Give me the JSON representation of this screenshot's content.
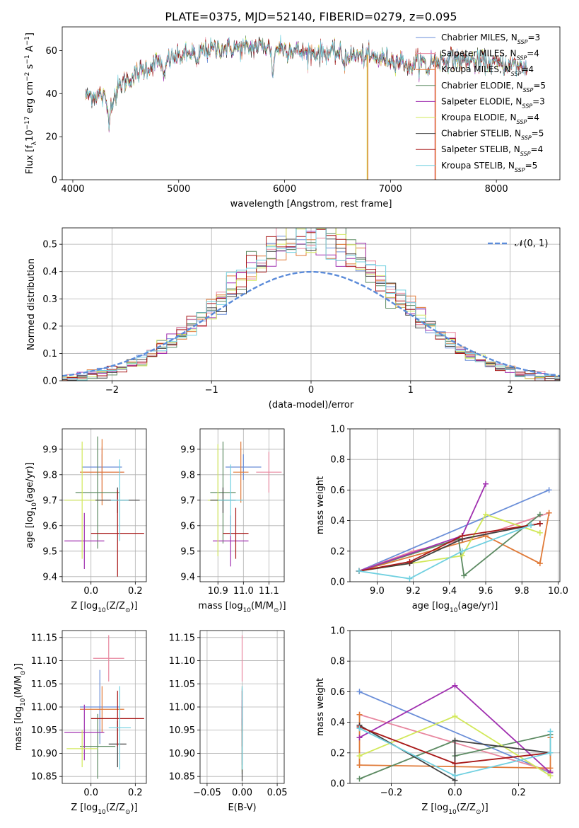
{
  "title": "PLATE=0375, MJD=52140, FIBERID=0279, z=0.095",
  "colors": {
    "Chabrier MILES": "#6a8ed8",
    "Salpeter MILES": "#e8879f",
    "Kroupa MILES": "#e07a38",
    "Chabrier ELODIE": "#5c8a62",
    "Salpeter ELODIE": "#a030b0",
    "Kroupa ELODIE": "#d2e85a",
    "Chabrier STELIB": "#404040",
    "Salpeter STELIB": "#a81818",
    "Kroupa STELIB": "#70d0e0"
  },
  "chart_data": [
    {
      "id": "spectrum",
      "type": "line",
      "xlabel": "wavelength [Angstrom, rest frame]",
      "ylabel": "Flux [f$_\\lambda$10$^{-17}$ erg cm$^{-2}$ s$^{-1}$ A$^{-1}$]",
      "xlim": [
        3900,
        8600
      ],
      "ylim": [
        0,
        71
      ],
      "xticks": [
        4000,
        5000,
        6000,
        7000,
        8000
      ],
      "yticks": [
        0,
        20,
        40,
        60
      ],
      "legend_position": "top-right",
      "legend": [
        {
          "name": "Chabrier MILES",
          "base": "Chabrier MILES, N",
          "sub": "SSP",
          "tail": "=3"
        },
        {
          "name": "Salpeter MILES",
          "base": "Salpeter MILES, N",
          "sub": "SSP",
          "tail": "=4"
        },
        {
          "name": "Kroupa MILES",
          "base": "Kroupa MILES, N",
          "sub": "SSP",
          "tail": "=4"
        },
        {
          "name": "Chabrier ELODIE",
          "base": "Chabrier ELODIE, N",
          "sub": "SSP",
          "tail": "=5"
        },
        {
          "name": "Salpeter ELODIE",
          "base": "Salpeter ELODIE, N",
          "sub": "SSP",
          "tail": "=3"
        },
        {
          "name": "Kroupa ELODIE",
          "base": "Kroupa ELODIE, N",
          "sub": "SSP",
          "tail": "=4"
        },
        {
          "name": "Chabrier STELIB",
          "base": "Chabrier STELIB, N",
          "sub": "SSP",
          "tail": "=5"
        },
        {
          "name": "Salpeter STELIB",
          "base": "Salpeter STELIB, N",
          "sub": "SSP",
          "tail": "=4"
        },
        {
          "name": "Kroupa STELIB",
          "base": "Kroupa STELIB, N",
          "sub": "SSP",
          "tail": "=5"
        }
      ],
      "continuum": [
        [
          4120,
          39
        ],
        [
          4250,
          40
        ],
        [
          4350,
          35
        ],
        [
          4450,
          44
        ],
        [
          4600,
          49
        ],
        [
          4800,
          55
        ],
        [
          5000,
          57
        ],
        [
          5200,
          60
        ],
        [
          5400,
          61
        ],
        [
          5600,
          61
        ],
        [
          5800,
          62
        ],
        [
          6000,
          61
        ],
        [
          6200,
          59
        ],
        [
          6400,
          59
        ],
        [
          6600,
          58
        ],
        [
          6800,
          57
        ],
        [
          7000,
          56
        ],
        [
          7200,
          54
        ],
        [
          7400,
          55
        ],
        [
          7600,
          56
        ],
        [
          7800,
          55
        ],
        [
          8000,
          54
        ],
        [
          8200,
          53
        ],
        [
          8300,
          52
        ]
      ],
      "dips": [
        [
          4340,
          -6
        ],
        [
          4861,
          -10
        ],
        [
          5175,
          -8
        ],
        [
          5890,
          -11
        ],
        [
          6563,
          -3
        ],
        [
          7180,
          -4
        ],
        [
          7350,
          -5
        ]
      ],
      "drops": [
        {
          "x": 6780,
          "from": 58,
          "colors": [
            "Kroupa ELODIE",
            "Kroupa MILES"
          ]
        },
        {
          "x": 7420,
          "from": 55,
          "colors": [
            "Salpeter MILES",
            "Kroupa MILES"
          ]
        }
      ]
    },
    {
      "id": "residuals",
      "type": "histogram",
      "xlabel": "(data-model)/error",
      "ylabel": "Normed distribution",
      "xlim": [
        -2.5,
        2.5
      ],
      "ylim": [
        0,
        0.56
      ],
      "xticks": [
        -2,
        -1,
        0,
        1,
        2
      ],
      "yticks": [
        0.0,
        0.1,
        0.2,
        0.3,
        0.4,
        0.5
      ],
      "bin_width": 0.1,
      "reference_curve": {
        "name": "𝒩(0, 1)",
        "type": "normal",
        "mean": 0,
        "sigma": 1
      },
      "legend_position": "top-right"
    },
    {
      "id": "z-age",
      "type": "scatter",
      "xlabel": "Z [log$_{10}$(Z/Z$_\\odot$)]",
      "ylabel": "age  [log$_{10}$(age/yr)]",
      "xlim": [
        -0.13,
        0.25
      ],
      "ylim": [
        9.38,
        9.98
      ],
      "xticks": [
        0.0,
        0.2
      ],
      "yticks": [
        9.4,
        9.5,
        9.6,
        9.7,
        9.8,
        9.9
      ],
      "points": [
        {
          "series": "Chabrier MILES",
          "x": 0.05,
          "xerr": 0.09,
          "y": 9.83,
          "yerr": 0.05
        },
        {
          "series": "Salpeter MILES",
          "x": 0.05,
          "xerr": 0.1,
          "y": 9.81,
          "yerr": 0.1
        },
        {
          "series": "Kroupa MILES",
          "x": 0.05,
          "xerr": 0.1,
          "y": 9.81,
          "yerr": 0.13
        },
        {
          "series": "Chabrier ELODIE",
          "x": 0.03,
          "xerr": 0.1,
          "y": 9.73,
          "yerr": 0.22
        },
        {
          "series": "Salpeter ELODIE",
          "x": -0.03,
          "xerr": 0.09,
          "y": 9.54,
          "yerr": 0.11
        },
        {
          "series": "Kroupa ELODIE",
          "x": -0.04,
          "xerr": 0.08,
          "y": 9.7,
          "yerr": 0.23
        },
        {
          "series": "Chabrier STELIB",
          "x": 0.12,
          "xerr": 0.1,
          "y": 9.7,
          "yerr": 0.05
        },
        {
          "series": "Salpeter STELIB",
          "x": 0.12,
          "xerr": 0.12,
          "y": 9.57,
          "yerr": 0.17
        },
        {
          "series": "Kroupa STELIB",
          "x": 0.13,
          "xerr": 0.04,
          "y": 9.7,
          "yerr": 0.16
        }
      ]
    },
    {
      "id": "mass-age",
      "type": "scatter",
      "xlabel": "mass [log$_{10}$(M/M$_\\odot$)]",
      "ylabel": "",
      "xlim": [
        10.83,
        11.16
      ],
      "ylim": [
        9.38,
        9.98
      ],
      "xticks": [
        10.9,
        11.0,
        11.1
      ],
      "yticks": [
        9.4,
        9.5,
        9.6,
        9.7,
        9.8,
        9.9
      ],
      "points": [
        {
          "series": "Chabrier MILES",
          "x": 11.0,
          "xerr": 0.07,
          "y": 9.83,
          "yerr": 0.05
        },
        {
          "series": "Salpeter MILES",
          "x": 11.1,
          "xerr": 0.05,
          "y": 9.81,
          "yerr": 0.08
        },
        {
          "series": "Kroupa MILES",
          "x": 10.99,
          "xerr": 0.03,
          "y": 9.81,
          "yerr": 0.12
        },
        {
          "series": "Chabrier ELODIE",
          "x": 10.92,
          "xerr": 0.05,
          "y": 9.73,
          "yerr": 0.2
        },
        {
          "series": "Salpeter ELODIE",
          "x": 10.95,
          "xerr": 0.07,
          "y": 9.54,
          "yerr": 0.1
        },
        {
          "series": "Kroupa ELODIE",
          "x": 10.9,
          "xerr": 0.04,
          "y": 9.7,
          "yerr": 0.22
        },
        {
          "series": "Chabrier STELIB",
          "x": 10.92,
          "xerr": 0.05,
          "y": 9.7,
          "yerr": 0.05
        },
        {
          "series": "Salpeter STELIB",
          "x": 10.97,
          "xerr": 0.05,
          "y": 9.57,
          "yerr": 0.1
        },
        {
          "series": "Kroupa STELIB",
          "x": 10.95,
          "xerr": 0.05,
          "y": 9.7,
          "yerr": 0.14
        }
      ]
    },
    {
      "id": "age-weight",
      "type": "line",
      "xlabel": "age  [log$_{10}$(age/yr)]",
      "ylabel": "mass weight",
      "xlim": [
        8.85,
        10.01
      ],
      "ylim": [
        0,
        1
      ],
      "xticks": [
        9.0,
        9.2,
        9.4,
        9.6,
        9.8,
        10.0
      ],
      "yticks": [
        0.0,
        0.2,
        0.4,
        0.6,
        0.8,
        1.0
      ],
      "series": [
        {
          "name": "Chabrier MILES",
          "x": [
            8.9,
            9.95
          ],
          "y": [
            0.07,
            0.6
          ]
        },
        {
          "name": "Salpeter MILES",
          "x": [
            8.9,
            9.2,
            9.6,
            9.95
          ],
          "y": [
            0.07,
            0.2,
            0.31,
            0.45
          ]
        },
        {
          "name": "Kroupa MILES",
          "x": [
            8.9,
            9.6,
            9.9,
            9.95
          ],
          "y": [
            0.07,
            0.3,
            0.12,
            0.45
          ]
        },
        {
          "name": "Chabrier ELODIE",
          "x": [
            8.9,
            9.45,
            9.48,
            9.9
          ],
          "y": [
            0.07,
            0.28,
            0.04,
            0.44
          ]
        },
        {
          "name": "Salpeter ELODIE",
          "x": [
            8.9,
            9.47,
            9.6
          ],
          "y": [
            0.07,
            0.3,
            0.64
          ]
        },
        {
          "name": "Kroupa ELODIE",
          "x": [
            8.9,
            9.47,
            9.6,
            9.9
          ],
          "y": [
            0.07,
            0.17,
            0.44,
            0.32
          ]
        },
        {
          "name": "Chabrier STELIB",
          "x": [
            8.9,
            9.18,
            9.47,
            9.9
          ],
          "y": [
            0.07,
            0.12,
            0.28,
            0.38
          ]
        },
        {
          "name": "Salpeter STELIB",
          "x": [
            8.9,
            9.18,
            9.47,
            9.9
          ],
          "y": [
            0.07,
            0.13,
            0.3,
            0.38
          ]
        },
        {
          "name": "Kroupa STELIB",
          "x": [
            8.9,
            9.18,
            9.47,
            9.85
          ],
          "y": [
            0.07,
            0.02,
            0.2,
            0.37
          ]
        }
      ]
    },
    {
      "id": "z-mass",
      "type": "scatter",
      "xlabel": "Z [log$_{10}$(Z/Z$_\\odot$)]",
      "ylabel": "mass [log$_{10}$(M/M$_\\odot$)]",
      "xlim": [
        -0.13,
        0.25
      ],
      "ylim": [
        10.835,
        11.165
      ],
      "xticks": [
        0.0,
        0.2
      ],
      "yticks": [
        10.85,
        10.9,
        10.95,
        11.0,
        11.05,
        11.1,
        11.15
      ],
      "points": [
        {
          "series": "Chabrier MILES",
          "x": 0.04,
          "xerr": 0.09,
          "y": 11.0,
          "yerr": 0.08
        },
        {
          "series": "Salpeter MILES",
          "x": 0.08,
          "xerr": 0.07,
          "y": 11.105,
          "yerr": 0.05
        },
        {
          "series": "Kroupa MILES",
          "x": 0.05,
          "xerr": 0.1,
          "y": 10.995,
          "yerr": 0.05
        },
        {
          "series": "Chabrier ELODIE",
          "x": 0.03,
          "xerr": 0.08,
          "y": 10.915,
          "yerr": 0.07
        },
        {
          "series": "Salpeter ELODIE",
          "x": -0.03,
          "xerr": 0.09,
          "y": 10.945,
          "yerr": 0.06
        },
        {
          "series": "Kroupa ELODIE",
          "x": -0.04,
          "xerr": 0.07,
          "y": 10.91,
          "yerr": 0.04
        },
        {
          "series": "Chabrier STELIB",
          "x": 0.12,
          "xerr": 0.04,
          "y": 10.92,
          "yerr": 0.05
        },
        {
          "series": "Salpeter STELIB",
          "x": 0.12,
          "xerr": 0.12,
          "y": 10.975,
          "yerr": 0.06
        },
        {
          "series": "Kroupa STELIB",
          "x": 0.13,
          "xerr": 0.05,
          "y": 10.955,
          "yerr": 0.09
        }
      ]
    },
    {
      "id": "ebv-mass",
      "type": "scatter",
      "xlabel": "E(B-V)",
      "ylabel": "",
      "xlim": [
        -0.06,
        0.06
      ],
      "ylim": [
        10.835,
        11.165
      ],
      "xticks": [
        -0.05,
        0.0,
        0.05
      ],
      "yticks": [
        10.85,
        10.9,
        10.95,
        11.0,
        11.05,
        11.1,
        11.15
      ],
      "points": [
        {
          "series": "Chabrier MILES",
          "x": 0,
          "xerr": 0,
          "y": 11.0,
          "yerr": 0.04
        },
        {
          "series": "Salpeter MILES",
          "x": 0,
          "xerr": 0,
          "y": 11.105,
          "yerr": 0.05
        },
        {
          "series": "Kroupa MILES",
          "x": 0,
          "xerr": 0,
          "y": 10.995,
          "yerr": 0.05
        },
        {
          "series": "Chabrier ELODIE",
          "x": 0,
          "xerr": 0,
          "y": 10.915,
          "yerr": 0.06
        },
        {
          "series": "Salpeter ELODIE",
          "x": 0,
          "xerr": 0,
          "y": 10.945,
          "yerr": 0.07
        },
        {
          "series": "Kroupa ELODIE",
          "x": 0,
          "xerr": 0,
          "y": 10.91,
          "yerr": 0.05
        },
        {
          "series": "Chabrier STELIB",
          "x": 0,
          "xerr": 0,
          "y": 10.92,
          "yerr": 0.08
        },
        {
          "series": "Salpeter STELIB",
          "x": 0,
          "xerr": 0,
          "y": 10.975,
          "yerr": 0.06
        },
        {
          "series": "Kroupa STELIB",
          "x": 0,
          "xerr": 0,
          "y": 10.955,
          "yerr": 0.09
        }
      ]
    },
    {
      "id": "z-weight",
      "type": "line",
      "xlabel": "Z [log$_{10}$(Z/Z$_\\odot$)]",
      "ylabel": "mass weight",
      "xlim": [
        -0.33,
        0.33
      ],
      "ylim": [
        0,
        1
      ],
      "xticks": [
        -0.2,
        0.0,
        0.2
      ],
      "yticks": [
        0.0,
        0.2,
        0.4,
        0.6,
        0.8,
        1.0
      ],
      "series": [
        {
          "name": "Chabrier MILES",
          "x": [
            -0.3,
            0.3
          ],
          "y": [
            0.6,
            0.07
          ]
        },
        {
          "name": "Salpeter MILES",
          "x": [
            -0.3,
            0.3
          ],
          "y": [
            0.45,
            0.08
          ]
        },
        {
          "name": "Kroupa MILES",
          "x": [
            -0.3,
            -0.3,
            0.3,
            0.3
          ],
          "y": [
            0.45,
            0.12,
            0.1,
            0.3
          ]
        },
        {
          "name": "Chabrier ELODIE",
          "x": [
            -0.3,
            0.0,
            0.0,
            0.3
          ],
          "y": [
            0.03,
            0.28,
            0.18,
            0.32
          ]
        },
        {
          "name": "Salpeter ELODIE",
          "x": [
            -0.3,
            0.0,
            0.3
          ],
          "y": [
            0.3,
            0.64,
            0.07
          ]
        },
        {
          "name": "Kroupa ELODIE",
          "x": [
            -0.3,
            0.0,
            0.3
          ],
          "y": [
            0.18,
            0.44,
            0.05
          ]
        },
        {
          "name": "Chabrier STELIB",
          "x": [
            -0.3,
            0.0,
            0.0,
            0.3
          ],
          "y": [
            0.38,
            0.02,
            0.28,
            0.2
          ]
        },
        {
          "name": "Salpeter STELIB",
          "x": [
            -0.3,
            0.0,
            0.3
          ],
          "y": [
            0.37,
            0.13,
            0.2
          ]
        },
        {
          "name": "Kroupa STELIB",
          "x": [
            -0.3,
            0.0,
            0.3,
            0.3
          ],
          "y": [
            0.36,
            0.05,
            0.2,
            0.34
          ]
        }
      ]
    }
  ]
}
